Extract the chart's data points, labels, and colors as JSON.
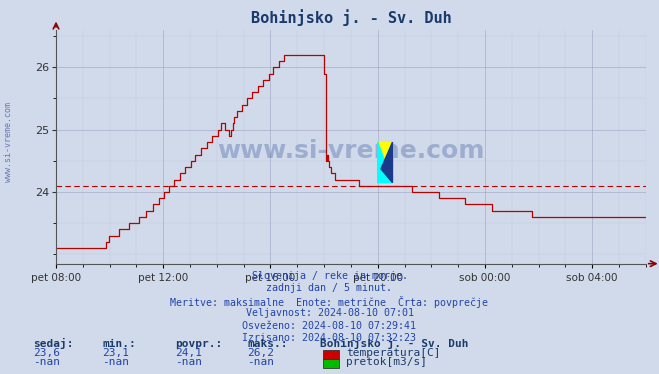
{
  "title": "Bohinjsko j. - Sv. Duh",
  "title_color": "#1a3a6b",
  "bg_color": "#d0daea",
  "plot_bg_color": "#d0daea",
  "line_color": "#bb0000",
  "avg_line_color": "#bb0000",
  "avg_value": 24.1,
  "grid_color_major": "#9999bb",
  "grid_color_minor": "#bbbbcc",
  "ylim": [
    22.85,
    26.6
  ],
  "yticks": [
    24,
    25,
    26
  ],
  "xtick_labels": [
    "pet 08:00",
    "pet 12:00",
    "pet 16:00",
    "pet 20:00",
    "sob 00:00",
    "sob 04:00"
  ],
  "xtick_positions": [
    0,
    4,
    8,
    12,
    16,
    20
  ],
  "watermark": "www.si-vreme.com",
  "watermark_color": "#1a3a8b",
  "side_label": "www.si-vreme.com",
  "info_lines": [
    "Slovenija / reke in morje.",
    "zadnji dan / 5 minut.",
    "Meritve: maksimalne  Enote: metrične  Črta: povprečje",
    "Veljavnost: 2024-08-10 07:01",
    "Osveženo: 2024-08-10 07:29:41",
    "Izrisano: 2024-08-10 07:32:23"
  ],
  "table_headers": [
    "sedaj:",
    "min.:",
    "povpr.:",
    "maks.:"
  ],
  "table_row1": [
    "23,6",
    "23,1",
    "24,1",
    "26,2"
  ],
  "table_row2": [
    "-nan",
    "-nan",
    "-nan",
    "-nan"
  ],
  "legend_label1": "temperatura[C]",
  "legend_label2": "pretok[m3/s]",
  "legend_color1": "#cc0000",
  "legend_color2": "#00bb00",
  "station_name": "Bohinjsko j. - Sv. Duh",
  "temp_steps": [
    [
      0.0,
      23.1
    ],
    [
      1.8,
      23.1
    ],
    [
      1.85,
      23.2
    ],
    [
      2.1,
      23.3
    ],
    [
      2.5,
      23.4
    ],
    [
      2.9,
      23.5
    ],
    [
      3.2,
      23.6
    ],
    [
      3.5,
      23.7
    ],
    [
      3.7,
      23.8
    ],
    [
      3.9,
      23.9
    ],
    [
      4.1,
      24.0
    ],
    [
      4.3,
      24.1
    ],
    [
      4.5,
      24.2
    ],
    [
      4.7,
      24.3
    ],
    [
      4.9,
      24.4
    ],
    [
      5.1,
      24.5
    ],
    [
      5.3,
      24.6
    ],
    [
      5.5,
      24.7
    ],
    [
      5.7,
      24.8
    ],
    [
      5.9,
      24.9
    ],
    [
      6.1,
      25.0
    ],
    [
      6.2,
      25.1
    ],
    [
      6.35,
      25.0
    ],
    [
      6.5,
      24.9
    ],
    [
      6.65,
      25.2
    ],
    [
      6.8,
      25.3
    ],
    [
      7.0,
      25.4
    ],
    [
      7.2,
      25.5
    ],
    [
      7.4,
      25.6
    ],
    [
      7.6,
      25.7
    ],
    [
      7.8,
      25.8
    ],
    [
      8.0,
      25.9
    ],
    [
      8.2,
      26.0
    ],
    [
      8.4,
      26.1
    ],
    [
      8.6,
      26.2
    ],
    [
      9.0,
      26.2
    ],
    [
      9.5,
      26.2
    ],
    [
      9.8,
      26.2
    ],
    [
      10.0,
      26.2
    ],
    [
      10.05,
      24.5
    ],
    [
      10.1,
      24.6
    ],
    [
      10.2,
      24.4
    ],
    [
      10.3,
      24.3
    ],
    [
      10.5,
      24.2
    ],
    [
      11.0,
      24.2
    ],
    [
      11.5,
      24.1
    ],
    [
      12.0,
      24.1
    ],
    [
      13.0,
      24.1
    ],
    [
      13.5,
      24.0
    ],
    [
      14.0,
      24.0
    ],
    [
      14.5,
      23.9
    ],
    [
      15.0,
      23.9
    ],
    [
      15.5,
      23.8
    ],
    [
      16.0,
      23.8
    ],
    [
      16.5,
      23.7
    ],
    [
      17.0,
      23.7
    ],
    [
      17.5,
      23.7
    ],
    [
      18.0,
      23.6
    ],
    [
      22.0,
      23.6
    ]
  ]
}
